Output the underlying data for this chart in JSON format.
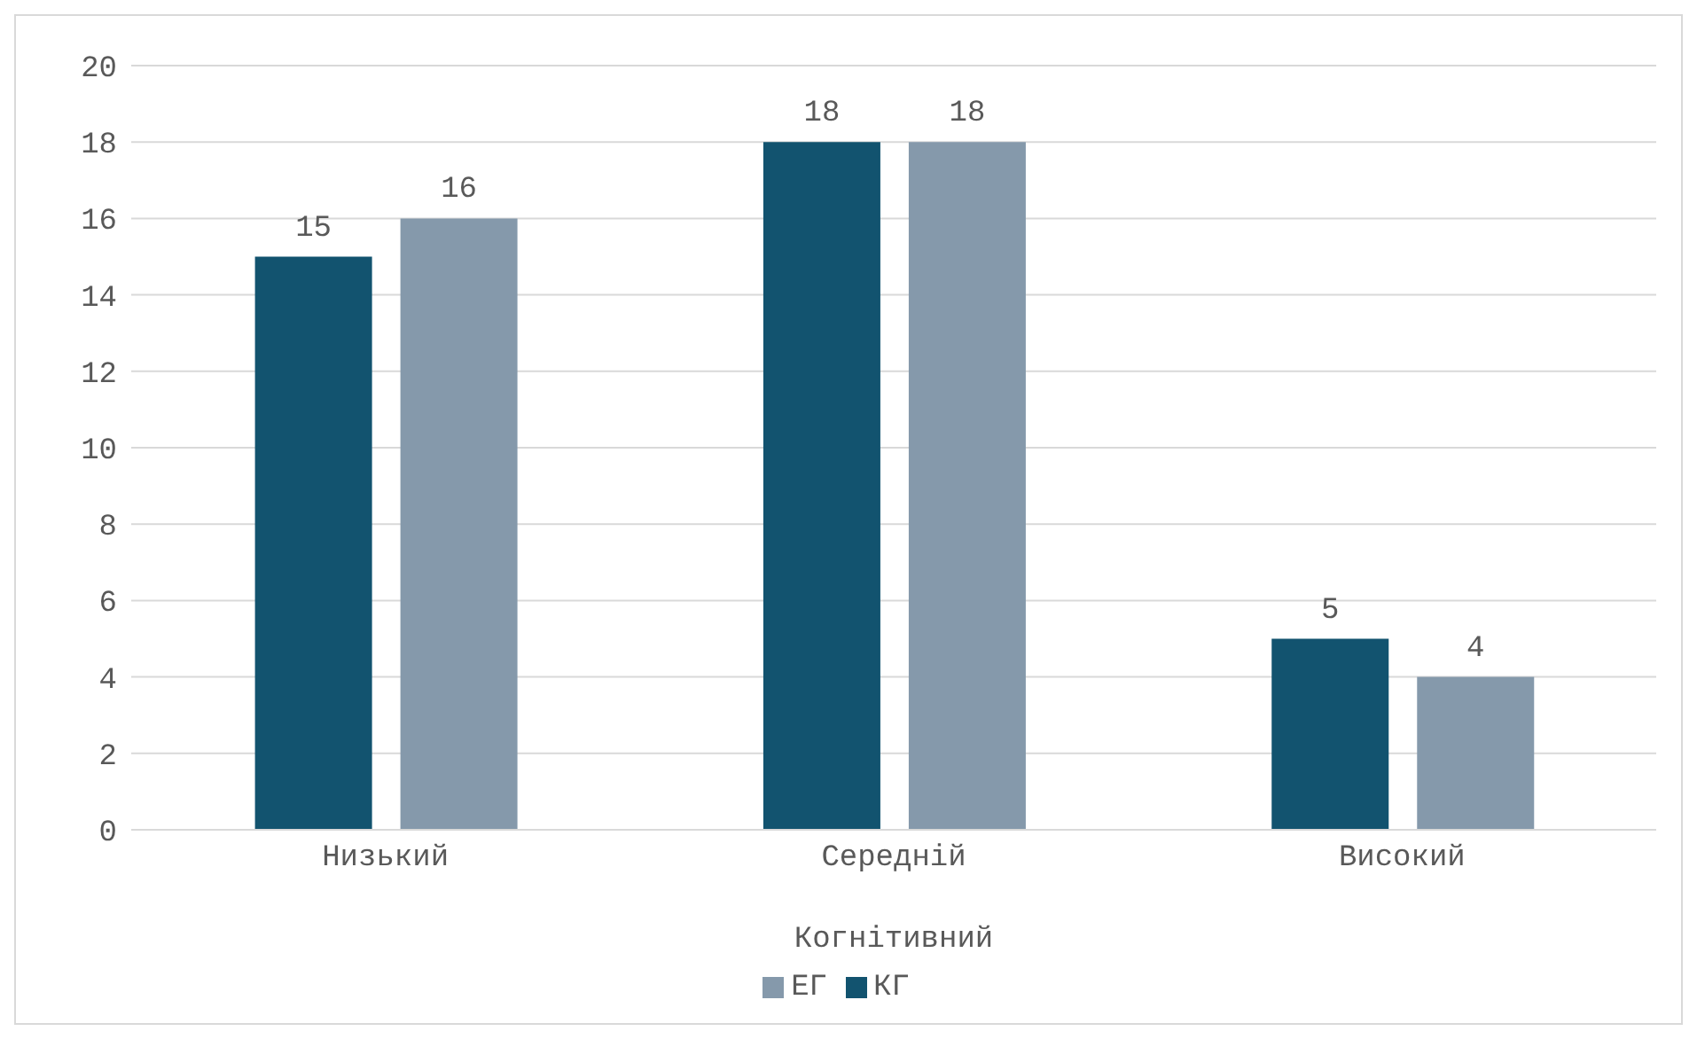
{
  "chart_data": {
    "type": "bar",
    "categories": [
      "Низький",
      "Середній",
      "Високий"
    ],
    "xlabel": "Когнітивний",
    "series": [
      {
        "name": "КГ",
        "color": "#12536f",
        "values": [
          15,
          18,
          5
        ]
      },
      {
        "name": "ЕГ",
        "color": "#8599ab",
        "values": [
          16,
          18,
          4
        ]
      }
    ],
    "ylim": [
      0,
      20
    ],
    "yticks": [
      0,
      2,
      4,
      6,
      8,
      10,
      12,
      14,
      16,
      18,
      20
    ],
    "grid": "y",
    "legend": "bottom",
    "data_labels": true
  }
}
